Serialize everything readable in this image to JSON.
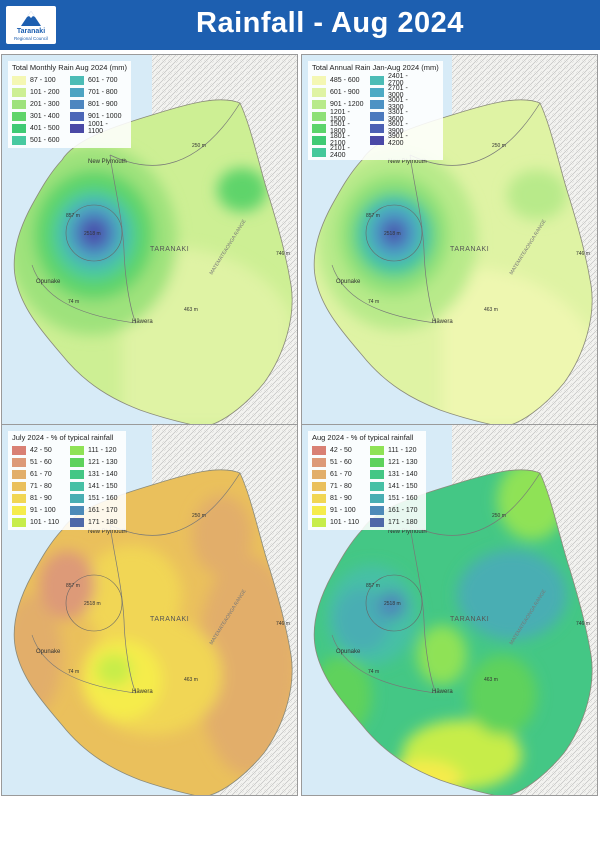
{
  "header": {
    "title": "Rainfall - Aug 2024",
    "logo_line1": "Taranaki",
    "logo_line2": "Regional Council"
  },
  "map_labels": {
    "new_plymouth": "New Plymouth",
    "opunake": "Opunake",
    "hawera": "Hāwera",
    "taranaki": "TARANAKI",
    "range": "MATEMATEAONGA RANGE",
    "peak": "2518 m",
    "h1": "857 m",
    "h2": "250 m",
    "h3": "746 m",
    "h4": "74 m",
    "h5": "463 m"
  },
  "panels": [
    {
      "legend_title": "Total Monthly Rain Aug 2024 (mm)",
      "items": [
        {
          "label": "87 - 100",
          "color": "#f4f7b4"
        },
        {
          "label": "101 - 200",
          "color": "#cdef94"
        },
        {
          "label": "201 - 300",
          "color": "#9ee27c"
        },
        {
          "label": "301 - 400",
          "color": "#5fd46a"
        },
        {
          "label": "401 - 500",
          "color": "#3fca74"
        },
        {
          "label": "501 - 600",
          "color": "#48c9a0"
        },
        {
          "label": "601 - 700",
          "color": "#4cbcb6"
        },
        {
          "label": "701 - 800",
          "color": "#4da4c2"
        },
        {
          "label": "801 - 900",
          "color": "#4d86c0"
        },
        {
          "label": "901 - 1000",
          "color": "#4c67b8"
        },
        {
          "label": "1001 - 1100",
          "color": "#4a49a6"
        }
      ]
    },
    {
      "legend_title": "Total Annual Rain Jan-Aug 2024 (mm)",
      "items": [
        {
          "label": "485 - 600",
          "color": "#f4f7b4"
        },
        {
          "label": "601 - 900",
          "color": "#dff3a4"
        },
        {
          "label": "901 - 1200",
          "color": "#b8ea8a"
        },
        {
          "label": "1201 - 1500",
          "color": "#8ee077"
        },
        {
          "label": "1501 - 1800",
          "color": "#5cd46b"
        },
        {
          "label": "1801 - 2100",
          "color": "#3fca74"
        },
        {
          "label": "2101 - 2400",
          "color": "#45c89a"
        },
        {
          "label": "2401 - 2700",
          "color": "#4cbcb6"
        },
        {
          "label": "2701 - 3000",
          "color": "#4daac4"
        },
        {
          "label": "3001 - 3300",
          "color": "#4d92c4"
        },
        {
          "label": "3301 - 3600",
          "color": "#4c7abe"
        },
        {
          "label": "3601 - 3900",
          "color": "#4b60b4"
        },
        {
          "label": "3901 - 4200",
          "color": "#4a49a6"
        }
      ]
    },
    {
      "legend_title": "July 2024 - % of typical rainfall",
      "items": [
        {
          "label": "42 - 50",
          "color": "#d98074"
        },
        {
          "label": "51 - 60",
          "color": "#dd9a78"
        },
        {
          "label": "61 - 70",
          "color": "#e2ae6a"
        },
        {
          "label": "71 - 80",
          "color": "#eac05c"
        },
        {
          "label": "81 - 90",
          "color": "#f1d654"
        },
        {
          "label": "91 - 100",
          "color": "#f5ec4c"
        },
        {
          "label": "101 - 110",
          "color": "#c7ed4a"
        },
        {
          "label": "111 - 120",
          "color": "#8fe256"
        },
        {
          "label": "121 - 130",
          "color": "#5ed25c"
        },
        {
          "label": "131 - 140",
          "color": "#44c785"
        },
        {
          "label": "141 - 150",
          "color": "#46c0a5"
        },
        {
          "label": "151 - 160",
          "color": "#49aeb3"
        },
        {
          "label": "161 - 170",
          "color": "#4d8ab8"
        },
        {
          "label": "171 - 180",
          "color": "#4e68a8"
        }
      ]
    },
    {
      "legend_title": "Aug 2024 - % of typical rainfall",
      "items": [
        {
          "label": "42 - 50",
          "color": "#d98074"
        },
        {
          "label": "51 - 60",
          "color": "#dd9a78"
        },
        {
          "label": "61 - 70",
          "color": "#e2ae6a"
        },
        {
          "label": "71 - 80",
          "color": "#eac05c"
        },
        {
          "label": "81 - 90",
          "color": "#f1d654"
        },
        {
          "label": "91 - 100",
          "color": "#f5ec4c"
        },
        {
          "label": "101 - 110",
          "color": "#c7ed4a"
        },
        {
          "label": "111 - 120",
          "color": "#8fe256"
        },
        {
          "label": "121 - 130",
          "color": "#5ed25c"
        },
        {
          "label": "131 - 140",
          "color": "#44c785"
        },
        {
          "label": "141 - 150",
          "color": "#46c0a5"
        },
        {
          "label": "151 - 160",
          "color": "#49aeb3"
        },
        {
          "label": "161 - 170",
          "color": "#4d8ab8"
        },
        {
          "label": "171 - 180",
          "color": "#4e68a8"
        }
      ]
    }
  ]
}
